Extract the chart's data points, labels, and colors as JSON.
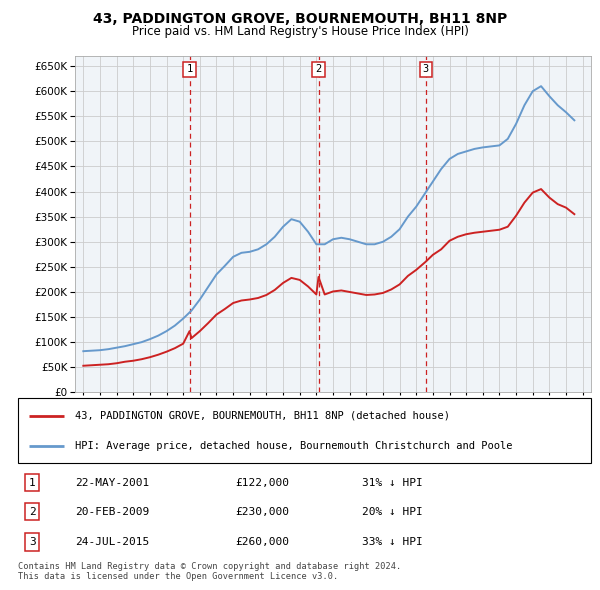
{
  "title": "43, PADDINGTON GROVE, BOURNEMOUTH, BH11 8NP",
  "subtitle": "Price paid vs. HM Land Registry's House Price Index (HPI)",
  "legend_line1": "43, PADDINGTON GROVE, BOURNEMOUTH, BH11 8NP (detached house)",
  "legend_line2": "HPI: Average price, detached house, Bournemouth Christchurch and Poole",
  "footer1": "Contains HM Land Registry data © Crown copyright and database right 2024.",
  "footer2": "This data is licensed under the Open Government Licence v3.0.",
  "transactions": [
    {
      "num": 1,
      "date": "22-MAY-2001",
      "price": "£122,000",
      "note": "31% ↓ HPI"
    },
    {
      "num": 2,
      "date": "20-FEB-2009",
      "price": "£230,000",
      "note": "20% ↓ HPI"
    },
    {
      "num": 3,
      "date": "24-JUL-2015",
      "price": "£260,000",
      "note": "33% ↓ HPI"
    }
  ],
  "transaction_markers": [
    {
      "x": 2001.38,
      "num": 1
    },
    {
      "x": 2009.13,
      "num": 2
    },
    {
      "x": 2015.56,
      "num": 3
    }
  ],
  "hpi_color": "#6699cc",
  "price_color": "#cc2222",
  "marker_color": "#cc2222",
  "background_color": "#ffffff",
  "grid_color": "#cccccc",
  "chart_bg": "#f0f4f8",
  "ylim": [
    0,
    670000
  ],
  "yticks": [
    0,
    50000,
    100000,
    150000,
    200000,
    250000,
    300000,
    350000,
    400000,
    450000,
    500000,
    550000,
    600000,
    650000
  ],
  "xlim": [
    1994.5,
    2025.5
  ],
  "xticks": [
    1995,
    1996,
    1997,
    1998,
    1999,
    2000,
    2001,
    2002,
    2003,
    2004,
    2005,
    2006,
    2007,
    2008,
    2009,
    2010,
    2011,
    2012,
    2013,
    2014,
    2015,
    2016,
    2017,
    2018,
    2019,
    2020,
    2021,
    2022,
    2023,
    2024,
    2025
  ],
  "hpi_x": [
    1995,
    1995.5,
    1996,
    1996.5,
    1997,
    1997.5,
    1998,
    1998.5,
    1999,
    1999.5,
    2000,
    2000.5,
    2001,
    2001.5,
    2002,
    2002.5,
    2003,
    2003.5,
    2004,
    2004.5,
    2005,
    2005.5,
    2006,
    2006.5,
    2007,
    2007.5,
    2008,
    2008.5,
    2009,
    2009.5,
    2010,
    2010.5,
    2011,
    2011.5,
    2012,
    2012.5,
    2013,
    2013.5,
    2014,
    2014.5,
    2015,
    2015.5,
    2016,
    2016.5,
    2017,
    2017.5,
    2018,
    2018.5,
    2019,
    2019.5,
    2020,
    2020.5,
    2021,
    2021.5,
    2022,
    2022.5,
    2023,
    2023.5,
    2024,
    2024.5
  ],
  "hpi_y": [
    82000,
    83000,
    84000,
    86000,
    89000,
    92000,
    96000,
    100000,
    106000,
    113000,
    122000,
    133000,
    147000,
    163000,
    185000,
    210000,
    235000,
    252000,
    270000,
    278000,
    280000,
    285000,
    295000,
    310000,
    330000,
    345000,
    340000,
    320000,
    295000,
    295000,
    305000,
    308000,
    305000,
    300000,
    295000,
    295000,
    300000,
    310000,
    325000,
    350000,
    370000,
    395000,
    420000,
    445000,
    465000,
    475000,
    480000,
    485000,
    488000,
    490000,
    492000,
    505000,
    535000,
    572000,
    600000,
    610000,
    590000,
    572000,
    558000,
    542000
  ],
  "price_x": [
    1995,
    1995.5,
    1996,
    1996.5,
    1997,
    1997.5,
    1998,
    1998.5,
    1999,
    1999.5,
    2000,
    2000.5,
    2001,
    2001.38,
    2001.5,
    2002,
    2002.5,
    2003,
    2003.5,
    2004,
    2004.5,
    2005,
    2005.5,
    2006,
    2006.5,
    2007,
    2007.5,
    2008,
    2008.5,
    2009,
    2009.13,
    2009.5,
    2010,
    2010.5,
    2011,
    2011.5,
    2012,
    2012.5,
    2013,
    2013.5,
    2014,
    2014.5,
    2015,
    2015.56,
    2016,
    2016.5,
    2017,
    2017.5,
    2018,
    2018.5,
    2019,
    2019.5,
    2020,
    2020.5,
    2021,
    2021.5,
    2022,
    2022.5,
    2023,
    2023.5,
    2024,
    2024.5
  ],
  "price_y": [
    53000,
    54000,
    55000,
    56000,
    58000,
    61000,
    63000,
    66000,
    70000,
    75000,
    81000,
    88000,
    97000,
    122000,
    108000,
    122000,
    138000,
    155000,
    166000,
    178000,
    183000,
    185000,
    188000,
    194000,
    204000,
    218000,
    228000,
    224000,
    211000,
    195000,
    230000,
    195000,
    201000,
    203000,
    200000,
    197000,
    194000,
    195000,
    198000,
    205000,
    215000,
    232000,
    244000,
    260000,
    274000,
    285000,
    302000,
    310000,
    315000,
    318000,
    320000,
    322000,
    324000,
    330000,
    352000,
    378000,
    398000,
    405000,
    388000,
    375000,
    368000,
    355000
  ]
}
